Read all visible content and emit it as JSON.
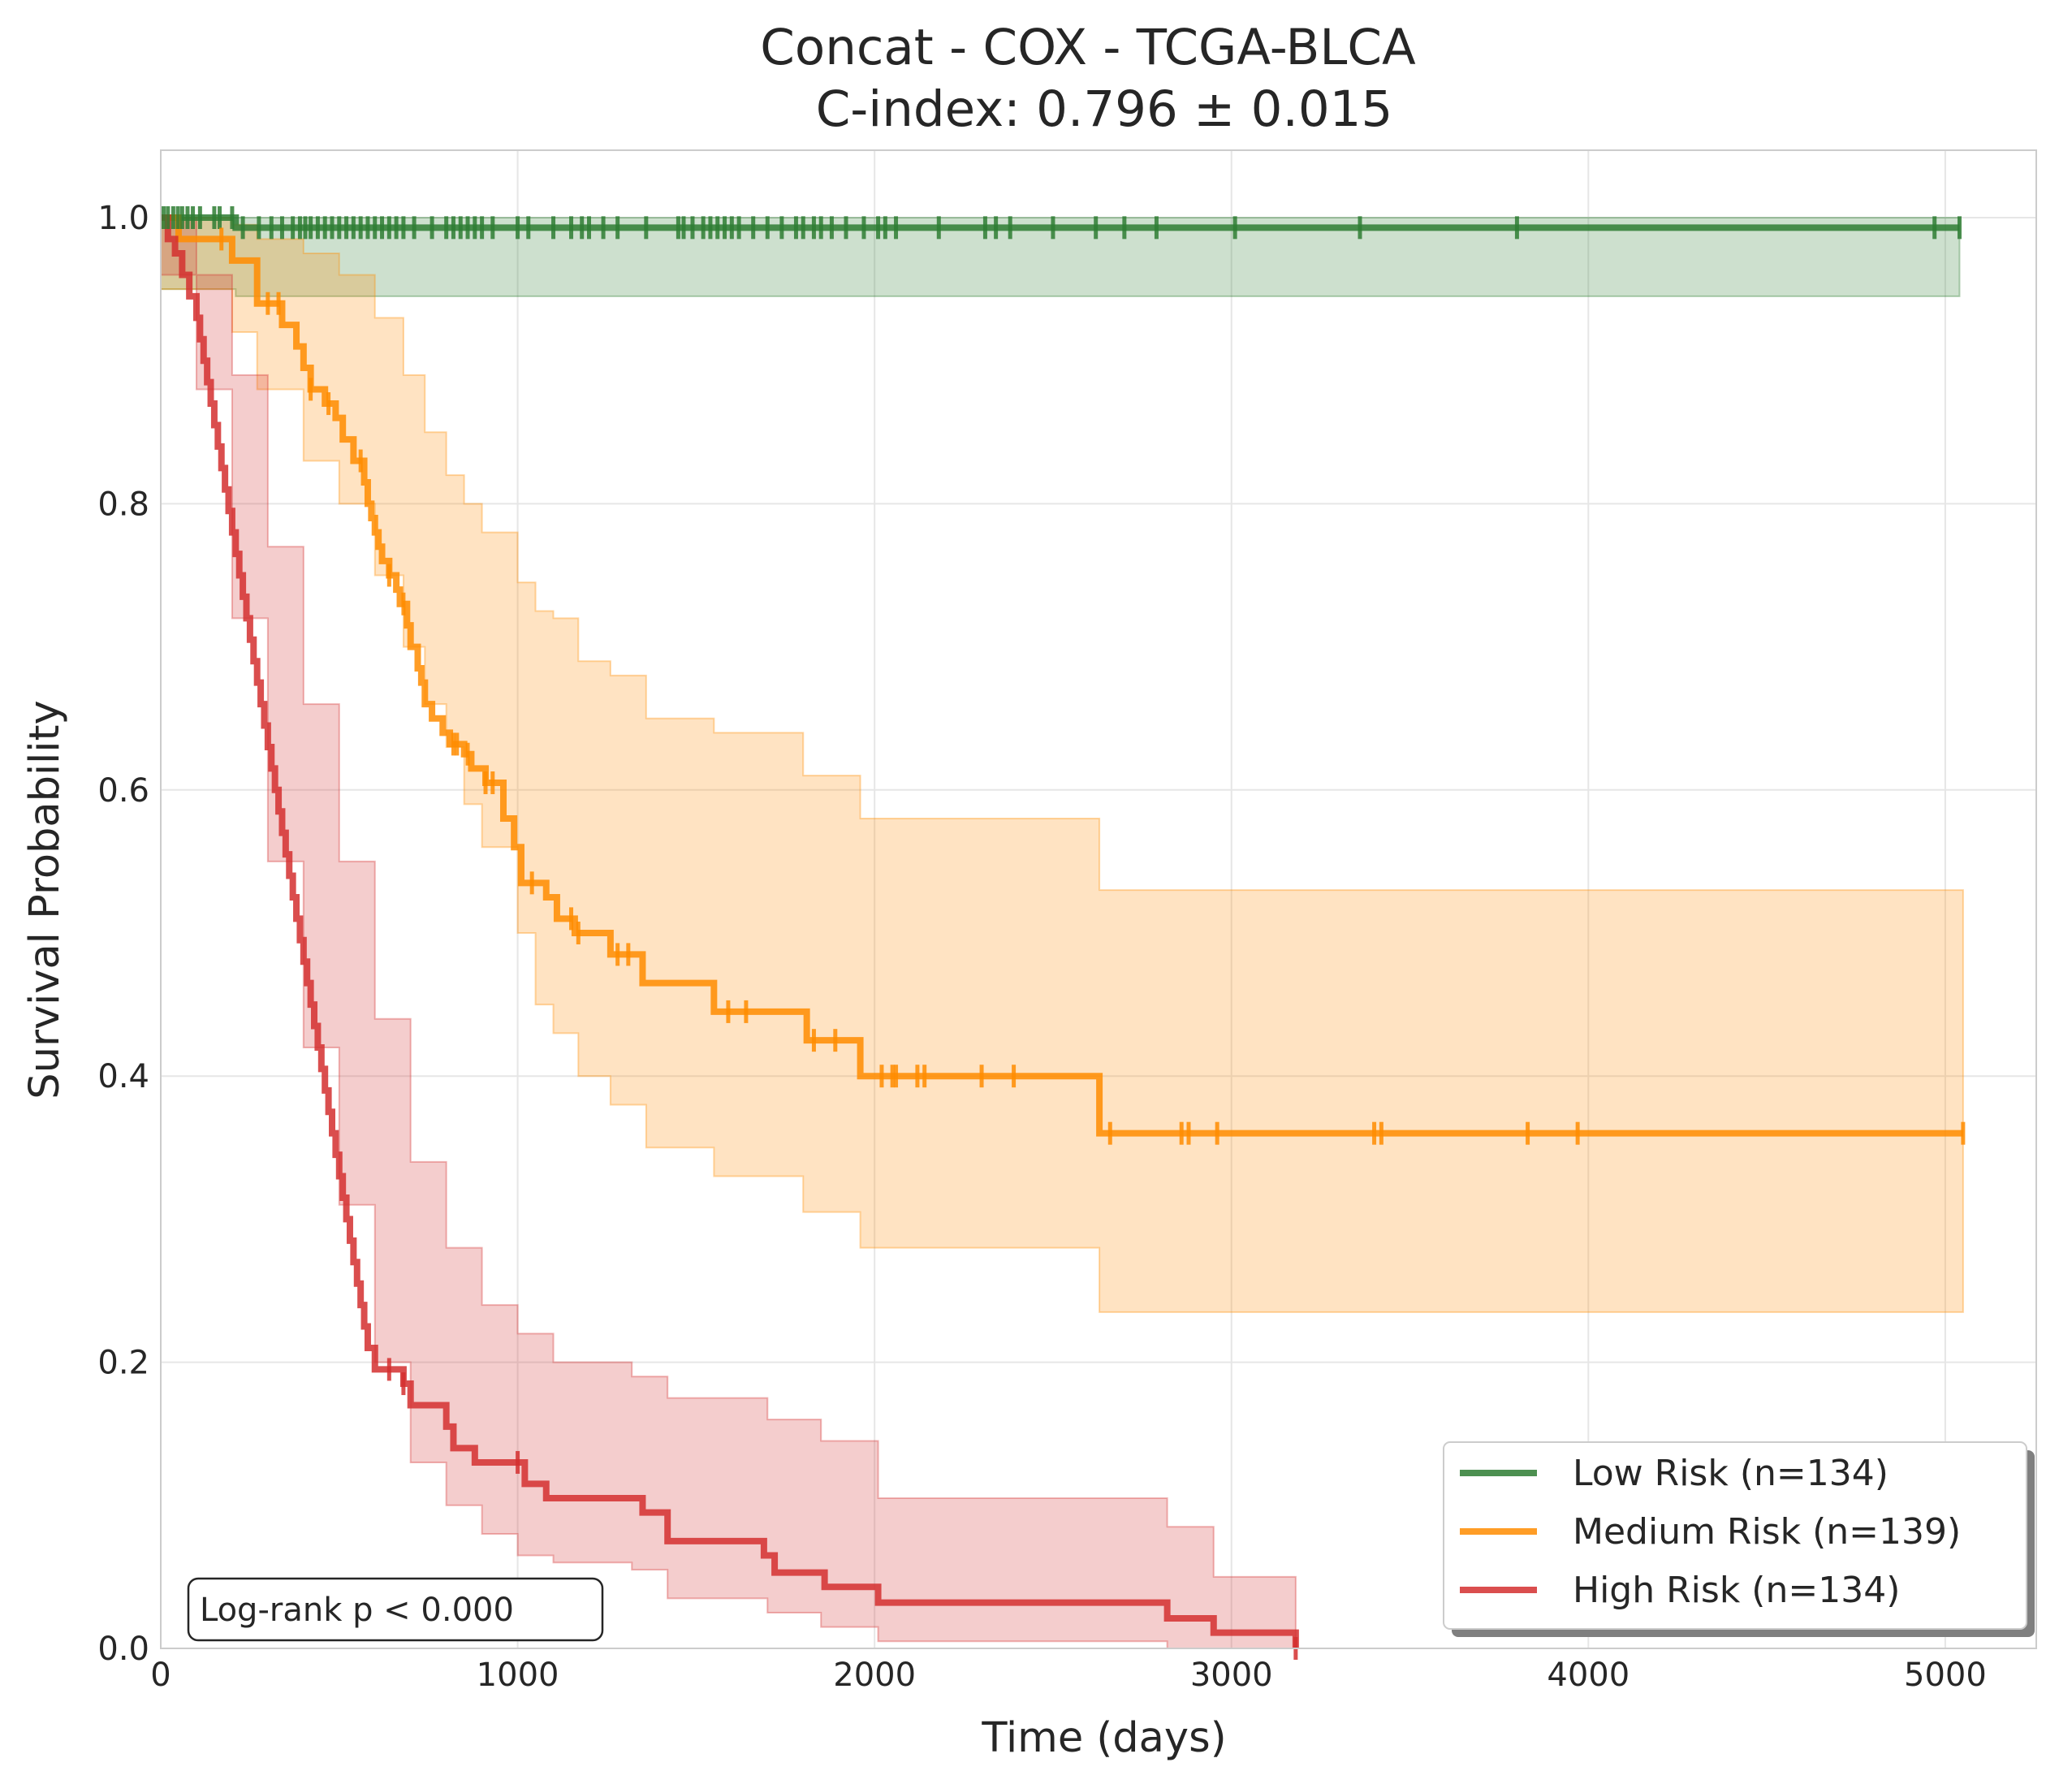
{
  "chart_data": {
    "type": "line",
    "subtype": "kaplan-meier step curves with confidence bands",
    "title": "Concat - COX - TCGA-BLCA",
    "subtitle": "C-index: 0.796 ± 0.015",
    "xlabel": "Time (days)",
    "ylabel": "Survival Probability",
    "xlim": [
      0,
      5300
    ],
    "ylim": [
      0,
      1.05
    ],
    "xticks": [
      0,
      1000,
      2000,
      3000,
      4000,
      5000
    ],
    "xtick_labels": [
      "0",
      "1000",
      "2000",
      "3000",
      "4000",
      "5000"
    ],
    "yticks": [
      0,
      0.2,
      0.4,
      0.6,
      0.8,
      1.0
    ],
    "ytick_labels": [
      "0.0",
      "0.2",
      "0.4",
      "0.6",
      "0.8",
      "1.0"
    ],
    "grid": true,
    "legend_position": "lower-right",
    "annotation": "Log-rank p < 0.000",
    "series": [
      {
        "name": "Low Risk (n=134)",
        "color": "#2e7d32",
        "steps": [
          [
            0,
            1.0
          ],
          [
            210,
            0.993
          ],
          [
            5040,
            0.993
          ]
        ],
        "ci_steps": [
          [
            0,
            1.0,
            0.95
          ],
          [
            210,
            1.0,
            0.945
          ],
          [
            5040,
            1.0,
            0.945
          ]
        ],
        "censor_times": [
          8,
          20,
          35,
          48,
          60,
          75,
          90,
          110,
          150,
          165,
          200,
          230,
          275,
          310,
          340,
          370,
          390,
          405,
          420,
          440,
          460,
          480,
          500,
          520,
          540,
          560,
          580,
          600,
          620,
          640,
          660,
          680,
          710,
          760,
          800,
          820,
          840,
          860,
          880,
          900,
          930,
          1000,
          1030,
          1100,
          1150,
          1180,
          1200,
          1240,
          1280,
          1360,
          1450,
          1465,
          1490,
          1520,
          1540,
          1560,
          1580,
          1600,
          1620,
          1660,
          1700,
          1740,
          1780,
          1800,
          1830,
          1850,
          1880,
          1920,
          1970,
          2010,
          2030,
          2060,
          2180,
          2310,
          2340,
          2380,
          2500,
          2620,
          2700,
          2790,
          3010,
          3360,
          3800,
          4970,
          5040
        ]
      },
      {
        "name": "Medium Risk (n=139)",
        "color": "#ff8c00",
        "steps": [
          [
            0,
            1.0
          ],
          [
            50,
            0.985
          ],
          [
            200,
            0.97
          ],
          [
            270,
            0.94
          ],
          [
            340,
            0.925
          ],
          [
            380,
            0.91
          ],
          [
            400,
            0.895
          ],
          [
            420,
            0.88
          ],
          [
            460,
            0.87
          ],
          [
            490,
            0.86
          ],
          [
            510,
            0.845
          ],
          [
            540,
            0.83
          ],
          [
            570,
            0.815
          ],
          [
            580,
            0.8
          ],
          [
            590,
            0.79
          ],
          [
            600,
            0.78
          ],
          [
            610,
            0.77
          ],
          [
            620,
            0.76
          ],
          [
            640,
            0.75
          ],
          [
            660,
            0.74
          ],
          [
            670,
            0.73
          ],
          [
            690,
            0.715
          ],
          [
            700,
            0.7
          ],
          [
            720,
            0.685
          ],
          [
            730,
            0.675
          ],
          [
            740,
            0.66
          ],
          [
            760,
            0.65
          ],
          [
            790,
            0.64
          ],
          [
            810,
            0.632
          ],
          [
            850,
            0.625
          ],
          [
            870,
            0.615
          ],
          [
            910,
            0.605
          ],
          [
            960,
            0.58
          ],
          [
            990,
            0.56
          ],
          [
            1010,
            0.535
          ],
          [
            1080,
            0.525
          ],
          [
            1110,
            0.51
          ],
          [
            1160,
            0.5
          ],
          [
            1260,
            0.485
          ],
          [
            1350,
            0.465
          ],
          [
            1550,
            0.445
          ],
          [
            1810,
            0.425
          ],
          [
            1960,
            0.4
          ],
          [
            2630,
            0.36
          ],
          [
            5050,
            0.36
          ]
        ],
        "ci_steps": [
          [
            0,
            1.0,
            0.95
          ],
          [
            200,
            0.995,
            0.92
          ],
          [
            270,
            0.985,
            0.88
          ],
          [
            400,
            0.975,
            0.83
          ],
          [
            500,
            0.96,
            0.8
          ],
          [
            600,
            0.93,
            0.75
          ],
          [
            680,
            0.89,
            0.7
          ],
          [
            740,
            0.85,
            0.66
          ],
          [
            800,
            0.82,
            0.63
          ],
          [
            850,
            0.8,
            0.59
          ],
          [
            900,
            0.78,
            0.56
          ],
          [
            1000,
            0.745,
            0.5
          ],
          [
            1050,
            0.725,
            0.45
          ],
          [
            1100,
            0.72,
            0.43
          ],
          [
            1170,
            0.69,
            0.4
          ],
          [
            1260,
            0.68,
            0.38
          ],
          [
            1360,
            0.65,
            0.35
          ],
          [
            1550,
            0.64,
            0.33
          ],
          [
            1800,
            0.61,
            0.305
          ],
          [
            1960,
            0.58,
            0.28
          ],
          [
            2630,
            0.53,
            0.235
          ],
          [
            5050,
            0.53,
            0.235
          ]
        ],
        "censor_times": [
          170,
          300,
          330,
          420,
          470,
          560,
          640,
          680,
          820,
          830,
          860,
          910,
          930,
          1040,
          1150,
          1170,
          1280,
          1310,
          1590,
          1640,
          1830,
          1890,
          2020,
          2050,
          2060,
          2120,
          2140,
          2300,
          2390,
          2660,
          2860,
          2880,
          2960,
          3400,
          3420,
          3830,
          3970,
          5050
        ]
      },
      {
        "name": "High Risk (n=134)",
        "color": "#d32f2f",
        "steps": [
          [
            0,
            1.0
          ],
          [
            20,
            0.985
          ],
          [
            40,
            0.975
          ],
          [
            60,
            0.96
          ],
          [
            80,
            0.945
          ],
          [
            100,
            0.93
          ],
          [
            110,
            0.915
          ],
          [
            120,
            0.9
          ],
          [
            130,
            0.885
          ],
          [
            140,
            0.87
          ],
          [
            150,
            0.855
          ],
          [
            160,
            0.84
          ],
          [
            170,
            0.825
          ],
          [
            180,
            0.81
          ],
          [
            190,
            0.795
          ],
          [
            200,
            0.78
          ],
          [
            210,
            0.765
          ],
          [
            220,
            0.75
          ],
          [
            230,
            0.735
          ],
          [
            240,
            0.72
          ],
          [
            250,
            0.705
          ],
          [
            260,
            0.69
          ],
          [
            270,
            0.675
          ],
          [
            280,
            0.66
          ],
          [
            290,
            0.645
          ],
          [
            300,
            0.63
          ],
          [
            310,
            0.615
          ],
          [
            320,
            0.6
          ],
          [
            330,
            0.585
          ],
          [
            340,
            0.57
          ],
          [
            350,
            0.555
          ],
          [
            360,
            0.54
          ],
          [
            370,
            0.525
          ],
          [
            380,
            0.51
          ],
          [
            390,
            0.495
          ],
          [
            400,
            0.48
          ],
          [
            410,
            0.465
          ],
          [
            420,
            0.45
          ],
          [
            430,
            0.435
          ],
          [
            440,
            0.42
          ],
          [
            450,
            0.405
          ],
          [
            460,
            0.39
          ],
          [
            470,
            0.375
          ],
          [
            480,
            0.36
          ],
          [
            490,
            0.345
          ],
          [
            500,
            0.33
          ],
          [
            510,
            0.315
          ],
          [
            520,
            0.3
          ],
          [
            530,
            0.285
          ],
          [
            540,
            0.27
          ],
          [
            550,
            0.255
          ],
          [
            560,
            0.24
          ],
          [
            570,
            0.225
          ],
          [
            580,
            0.21
          ],
          [
            600,
            0.195
          ],
          [
            680,
            0.185
          ],
          [
            700,
            0.17
          ],
          [
            800,
            0.155
          ],
          [
            820,
            0.14
          ],
          [
            880,
            0.13
          ],
          [
            1020,
            0.115
          ],
          [
            1080,
            0.105
          ],
          [
            1350,
            0.095
          ],
          [
            1420,
            0.075
          ],
          [
            1690,
            0.065
          ],
          [
            1720,
            0.053
          ],
          [
            1860,
            0.043
          ],
          [
            2010,
            0.032
          ],
          [
            2820,
            0.021
          ],
          [
            2950,
            0.011
          ],
          [
            3180,
            0.0
          ]
        ],
        "ci_steps": [
          [
            0,
            1.0,
            0.96
          ],
          [
            100,
            0.96,
            0.88
          ],
          [
            200,
            0.89,
            0.72
          ],
          [
            300,
            0.77,
            0.55
          ],
          [
            400,
            0.66,
            0.42
          ],
          [
            500,
            0.55,
            0.31
          ],
          [
            600,
            0.44,
            0.2
          ],
          [
            700,
            0.34,
            0.13
          ],
          [
            800,
            0.28,
            0.1
          ],
          [
            900,
            0.24,
            0.08
          ],
          [
            1000,
            0.22,
            0.065
          ],
          [
            1100,
            0.2,
            0.06
          ],
          [
            1320,
            0.19,
            0.055
          ],
          [
            1420,
            0.175,
            0.035
          ],
          [
            1700,
            0.16,
            0.025
          ],
          [
            1850,
            0.145,
            0.015
          ],
          [
            2010,
            0.105,
            0.005
          ],
          [
            2820,
            0.085,
            0.0
          ],
          [
            2950,
            0.05,
            0.0
          ],
          [
            3180,
            0.05,
            0.0
          ]
        ],
        "censor_times": [
          640,
          680,
          1000,
          3180
        ]
      }
    ]
  }
}
